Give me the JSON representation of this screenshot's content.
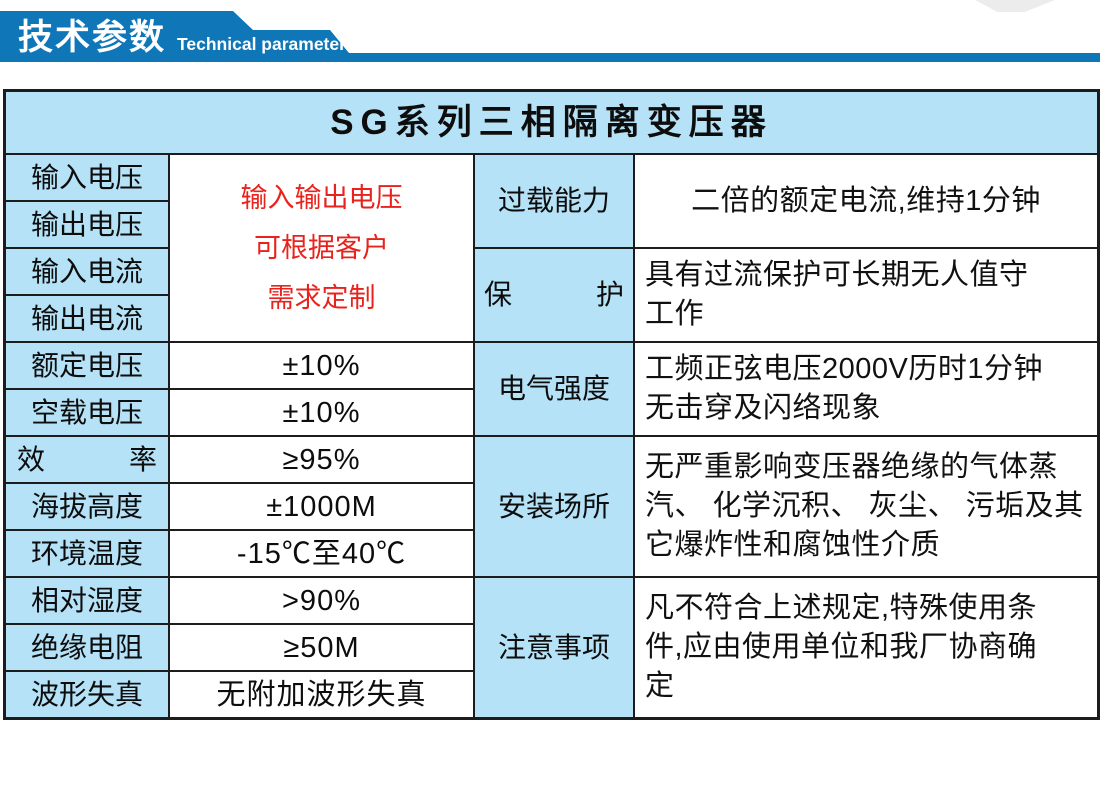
{
  "banner": {
    "title_cn": "技术参数",
    "title_en": "Technical parameter",
    "bg_color": "#0f76b8"
  },
  "table": {
    "title": "SG系列三相隔离变压器",
    "colors": {
      "cell_blue": "#b5e2f7",
      "border": "#1c1c1c",
      "red_text": "#e8231d"
    },
    "left": {
      "merged_value": "输入输出电压\n可根据客户\n需求定制",
      "rows": [
        {
          "label": "输入电压"
        },
        {
          "label": "输出电压"
        },
        {
          "label": "输入电流"
        },
        {
          "label": "输出电流"
        },
        {
          "label": "额定电压",
          "value": "±10%"
        },
        {
          "label": "空载电压",
          "value": "±10%"
        },
        {
          "label": "效　　　率",
          "value": "≥95%"
        },
        {
          "label": "海拔高度",
          "value": "±1000M"
        },
        {
          "label": "环境温度",
          "value": "-15℃至40℃"
        },
        {
          "label": "相对湿度",
          "value": ">90%"
        },
        {
          "label": "绝缘电阻",
          "value": "≥50M"
        },
        {
          "label": "波形失真",
          "value": "无附加波形失真"
        }
      ]
    },
    "right": {
      "rows": [
        {
          "label": "过载能力",
          "value": "二倍的额定电流,维持1分钟"
        },
        {
          "label": "保　　　护",
          "value": "具有过流保护可长期无人值守\n工作"
        },
        {
          "label": "电气强度",
          "value": "工频正弦电压2000V历时1分钟\n无击穿及闪络现象"
        },
        {
          "label": "安装场所",
          "value": "无严重影响变压器绝缘的气体蒸\n汽、 化学沉积、 灰尘、 污垢及其\n它爆炸性和腐蚀性介质"
        },
        {
          "label": "注意事项",
          "value": "凡不符合上述规定,特殊使用条\n件,应由使用单位和我厂协商确\n定"
        }
      ]
    }
  }
}
